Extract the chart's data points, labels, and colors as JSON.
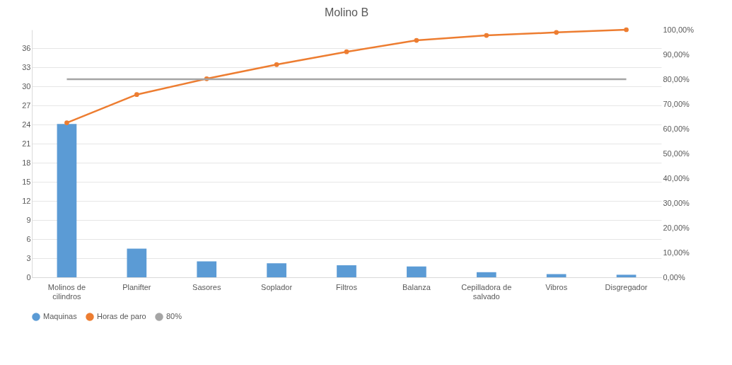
{
  "chart_data": {
    "type": "bar",
    "title": "Molino B",
    "categories": [
      "Molinos de cilindros",
      "Planifter",
      "Sasores",
      "Soplador",
      "Filtros",
      "Balanza",
      "Cepilladora de salvado",
      "Vibros",
      "Disgregador"
    ],
    "series": [
      {
        "name": "Maquinas",
        "color": "#5b9bd5",
        "values": [
          24.1,
          4.5,
          2.5,
          2.2,
          1.9,
          1.7,
          0.8,
          0.5,
          0.4
        ]
      },
      {
        "name": "Horas de paro",
        "type": "line",
        "axis": "y2",
        "marker": "circle",
        "color": "#ed7d31",
        "values": [
          62.4,
          73.8,
          80.2,
          85.9,
          91.1,
          95.7,
          97.7,
          98.9,
          100
        ]
      },
      {
        "name": "80%",
        "type": "line",
        "axis": "y2",
        "color": "#a5a5a5",
        "values": [
          80,
          80,
          80,
          80,
          80,
          80,
          80,
          80,
          80
        ]
      }
    ],
    "ylim": [
      0,
      38.9
    ],
    "yticks": [
      0,
      3,
      6,
      9,
      12,
      15,
      18,
      21,
      24,
      27,
      30,
      33,
      36
    ],
    "y2lim": [
      0,
      100
    ],
    "y2ticks": [
      {
        "value": 0,
        "label": "0,00%"
      },
      {
        "value": 10,
        "label": "10,00%"
      },
      {
        "value": 20,
        "label": "20,00%"
      },
      {
        "value": 30,
        "label": "30,00%"
      },
      {
        "value": 40,
        "label": "40,00%"
      },
      {
        "value": 50,
        "label": "50,00%"
      },
      {
        "value": 60,
        "label": "60,00%"
      },
      {
        "value": 70,
        "label": "70,00%"
      },
      {
        "value": 80,
        "label": "80,00%"
      },
      {
        "value": 90,
        "label": "90,00%"
      },
      {
        "value": 100,
        "label": "100,00%"
      }
    ],
    "grid": "y",
    "legend": "bottom"
  }
}
